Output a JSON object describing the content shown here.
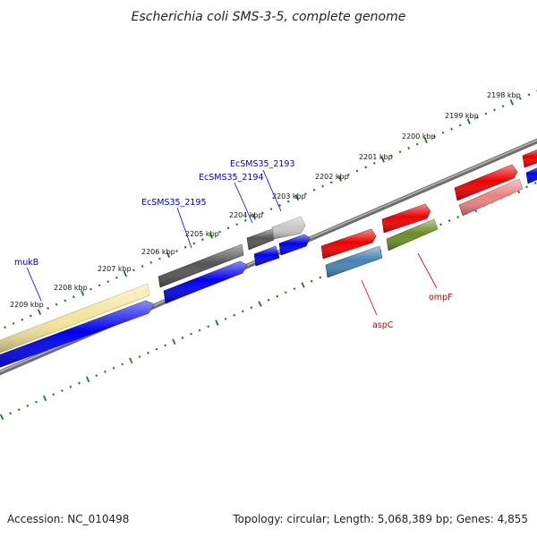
{
  "title": "Escherichia coli SMS-3-5, complete genome",
  "footer": {
    "accession": "Accession: NC_010498",
    "summary": "Topology: circular; Length: 5,068,389 bp; Genes: 4,855"
  },
  "colors": {
    "tick": "#1a7a1a",
    "backbone": "#8c8c8c",
    "cds_blue": "#0000ee",
    "cds_red": "#ee0000",
    "cds_pink": "#ee8080",
    "cds_yellow": "#f3e59a",
    "cds_olive": "#6b8e23",
    "cds_steelblue": "#4682b4",
    "cds_darkgray": "#555555",
    "cds_lightgray": "#c8c8c8",
    "label_blue": "#0000cc",
    "label_red": "#cc0000"
  },
  "ticks": [
    {
      "label": "2198 kbp",
      "kbp": 2198
    },
    {
      "label": "2199 kbp",
      "kbp": 2199
    },
    {
      "label": "2200 kbp",
      "kbp": 2200
    },
    {
      "label": "2201 kbp",
      "kbp": 2201
    },
    {
      "label": "2202 kbp",
      "kbp": 2202
    },
    {
      "label": "2203 kbp",
      "kbp": 2203
    },
    {
      "label": "2204 kbp",
      "kbp": 2204
    },
    {
      "label": "2205 kbp",
      "kbp": 2205
    },
    {
      "label": "2206 kbp",
      "kbp": 2206
    },
    {
      "label": "2207 kbp",
      "kbp": 2207
    },
    {
      "label": "2208 kbp",
      "kbp": 2208
    },
    {
      "label": "2209 kbp",
      "kbp": 2209
    }
  ],
  "gene_labels": [
    {
      "name": "mukB",
      "color": "label_blue"
    },
    {
      "name": "EcSMS35_2195",
      "color": "label_blue"
    },
    {
      "name": "EcSMS35_2194",
      "color": "label_blue"
    },
    {
      "name": "EcSMS35_2193",
      "color": "label_blue"
    },
    {
      "name": "aspC",
      "color": "label_red"
    },
    {
      "name": "ompF",
      "color": "label_red"
    }
  ]
}
